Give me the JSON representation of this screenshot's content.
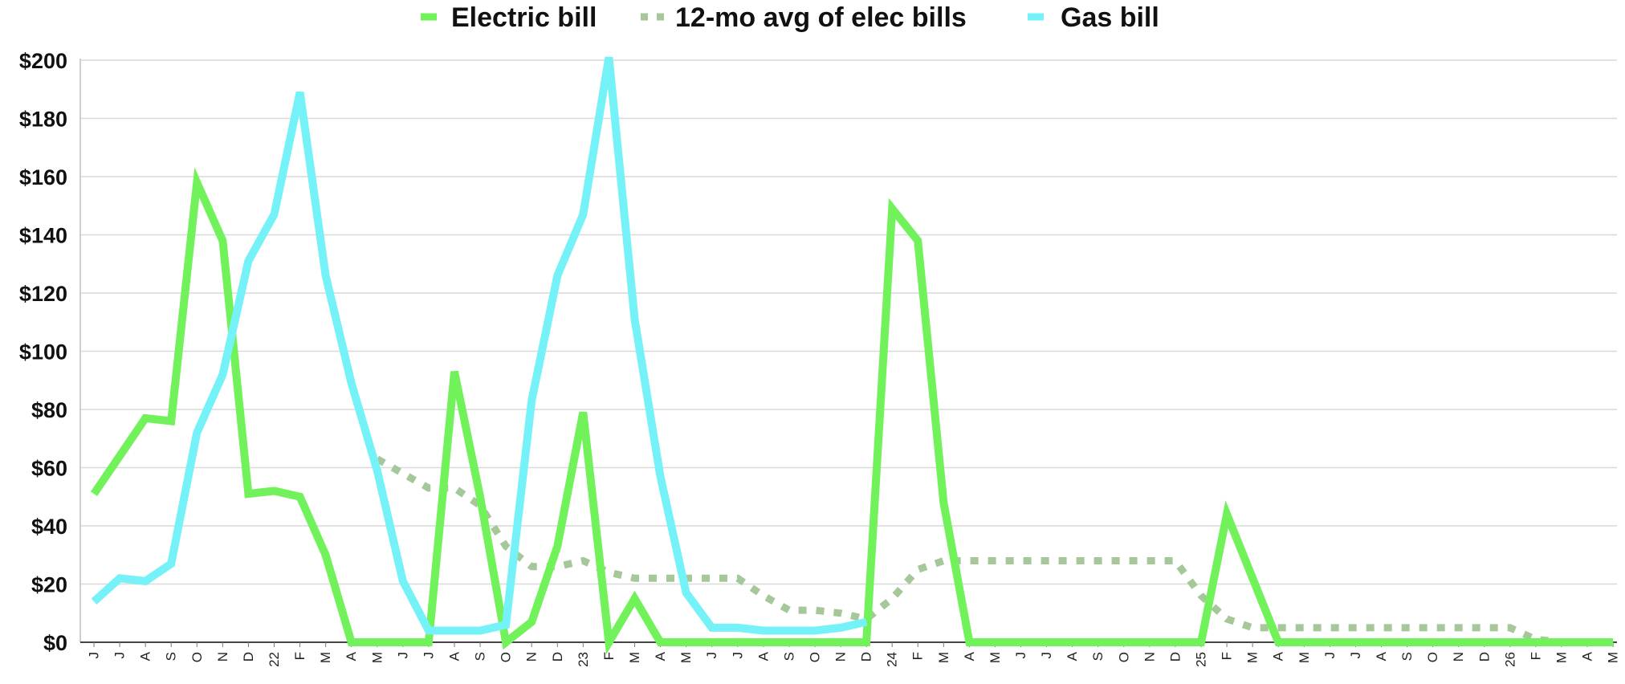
{
  "chart_data": {
    "type": "line",
    "title": "",
    "xlabel": "",
    "ylabel": "",
    "ylim": [
      0,
      200
    ],
    "yticks": [
      "$0",
      "$20",
      "$40",
      "$60",
      "$80",
      "$100",
      "$120",
      "$140",
      "$160",
      "$180",
      "$200"
    ],
    "grid": true,
    "legend_position": "top-center",
    "categories": [
      "J",
      "J",
      "A",
      "S",
      "O",
      "N",
      "D",
      "22",
      "F",
      "M",
      "A",
      "M",
      "J",
      "J",
      "A",
      "S",
      "O",
      "N",
      "D",
      "23",
      "F",
      "M",
      "A",
      "M",
      "J",
      "J",
      "A",
      "S",
      "O",
      "N",
      "D",
      "24",
      "F",
      "M",
      "A",
      "M",
      "J",
      "J",
      "A",
      "S",
      "O",
      "N",
      "D",
      "25",
      "F",
      "M",
      "A",
      "M",
      "J",
      "J",
      "A",
      "S",
      "O",
      "N",
      "D",
      "26",
      "F",
      "M",
      "A",
      "M"
    ],
    "series": [
      {
        "name": "Electric bill",
        "color": "#72f25a",
        "style": "solid",
        "values": [
          51,
          64,
          77,
          76,
          158,
          138,
          51,
          52,
          50,
          30,
          0,
          0,
          0,
          0,
          93,
          50,
          0,
          7,
          33,
          79,
          0,
          15,
          0,
          0,
          0,
          0,
          0,
          0,
          0,
          0,
          0,
          149,
          138,
          48,
          0,
          0,
          0,
          0,
          0,
          0,
          0,
          0,
          0,
          0,
          44,
          22,
          0,
          0,
          0,
          0,
          0,
          0,
          0,
          0,
          0,
          0,
          0,
          0,
          0,
          0
        ]
      },
      {
        "name": "12-mo avg of elec bills",
        "color": "#a6c79a",
        "style": "dotted",
        "values": [
          null,
          null,
          null,
          null,
          null,
          null,
          null,
          null,
          null,
          null,
          null,
          63,
          58,
          53,
          53,
          47,
          33,
          26,
          26,
          28,
          24,
          22,
          22,
          22,
          22,
          22,
          16,
          11,
          11,
          10,
          8,
          15,
          25,
          28,
          28,
          28,
          28,
          28,
          28,
          28,
          28,
          28,
          28,
          16,
          8,
          5,
          5,
          5,
          5,
          5,
          5,
          5,
          5,
          5,
          5,
          5,
          1,
          0,
          0,
          0
        ]
      },
      {
        "name": "Gas bill",
        "color": "#74f2f8",
        "style": "solid",
        "values": [
          14,
          22,
          21,
          27,
          72,
          92,
          131,
          147,
          189,
          126,
          89,
          59,
          21,
          4,
          4,
          4,
          6,
          83,
          126,
          147,
          201,
          111,
          57,
          17,
          5,
          5,
          4,
          4,
          4,
          5,
          7,
          null,
          null,
          null,
          null,
          null,
          null,
          null,
          null,
          null,
          null,
          null,
          null,
          null,
          null,
          null,
          null,
          null,
          null,
          null,
          null,
          null,
          null,
          null,
          null,
          null,
          null,
          null,
          null,
          null
        ]
      }
    ]
  }
}
